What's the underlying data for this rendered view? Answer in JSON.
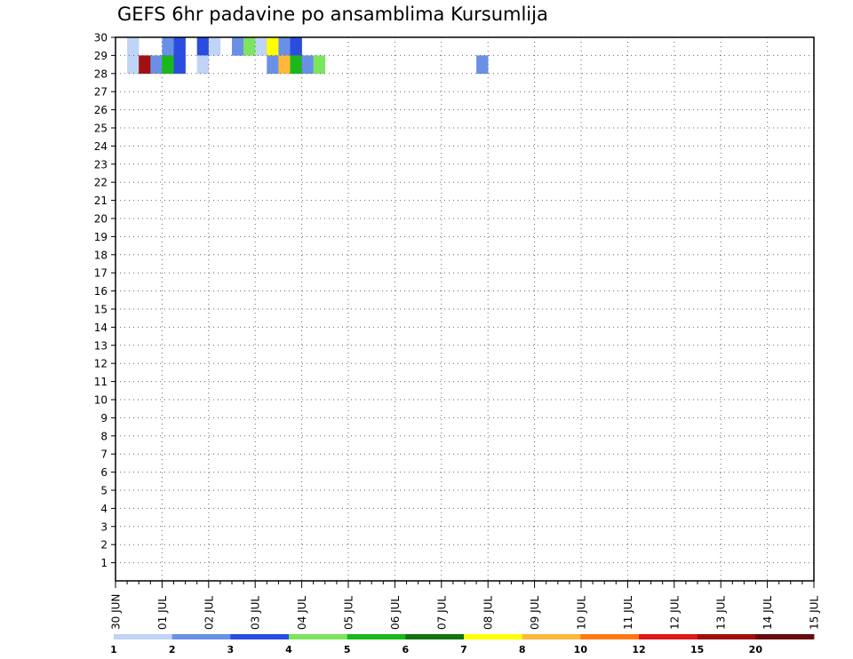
{
  "chart_data": {
    "type": "heatmap",
    "title": "GEFS 6hr padavine po ansamblima Kursumlija",
    "xlabel": "",
    "ylabel": "",
    "x_tick_labels": [
      "30 JUN",
      "01 JUL",
      "02 JUL",
      "03 JUL",
      "04 JUL",
      "05 JUL",
      "06 JUL",
      "07 JUL",
      "08 JUL",
      "09 JUL",
      "10 JUL",
      "11 JUL",
      "12 JUL",
      "13 JUL",
      "14 JUL",
      "15 JUL"
    ],
    "y_tick_labels": [
      "1",
      "2",
      "3",
      "4",
      "5",
      "6",
      "7",
      "8",
      "9",
      "10",
      "11",
      "12",
      "13",
      "14",
      "15",
      "16",
      "17",
      "18",
      "19",
      "20",
      "21",
      "22",
      "23",
      "24",
      "25",
      "26",
      "27",
      "28",
      "29",
      "30"
    ],
    "grid": true,
    "legend": {
      "placement": "bottom",
      "labels": [
        "1",
        "2",
        "3",
        "4",
        "5",
        "6",
        "7",
        "8",
        "10",
        "12",
        "15",
        "20"
      ],
      "colors": [
        "#c0d4f8",
        "#6a90e6",
        "#2a4de0",
        "#7de460",
        "#1ab81a",
        "#127212",
        "#ffff00",
        "#ffb83a",
        "#ff7a12",
        "#de1a1a",
        "#a01010",
        "#6a0a0a"
      ]
    },
    "x_resolution": "6hr",
    "cells": [
      {
        "t": "30 JUN 06",
        "m": 30,
        "v": 1.5
      },
      {
        "t": "01 JUL 00",
        "m": 30,
        "v": 2.5
      },
      {
        "t": "01 JUL 06",
        "m": 30,
        "v": 3.5
      },
      {
        "t": "01 JUL 18",
        "m": 30,
        "v": 3.5
      },
      {
        "t": "02 JUL 00",
        "m": 30,
        "v": 1.5
      },
      {
        "t": "02 JUL 12",
        "m": 30,
        "v": 2.5
      },
      {
        "t": "02 JUL 18",
        "m": 30,
        "v": 4.5
      },
      {
        "t": "03 JUL 00",
        "m": 30,
        "v": 1.5
      },
      {
        "t": "03 JUL 06",
        "m": 30,
        "v": 7.5
      },
      {
        "t": "03 JUL 12",
        "m": 30,
        "v": 2.5
      },
      {
        "t": "03 JUL 18",
        "m": 30,
        "v": 3.5
      },
      {
        "t": "30 JUN 06",
        "m": 29,
        "v": 1.5
      },
      {
        "t": "30 JUN 12",
        "m": 29,
        "v": 15.5
      },
      {
        "t": "30 JUN 18",
        "m": 29,
        "v": 2.5
      },
      {
        "t": "01 JUL 00",
        "m": 29,
        "v": 5.5
      },
      {
        "t": "01 JUL 06",
        "m": 29,
        "v": 3.5
      },
      {
        "t": "01 JUL 18",
        "m": 29,
        "v": 1.5
      },
      {
        "t": "03 JUL 06",
        "m": 29,
        "v": 2.5
      },
      {
        "t": "03 JUL 12",
        "m": 29,
        "v": 9
      },
      {
        "t": "03 JUL 18",
        "m": 29,
        "v": 5.5
      },
      {
        "t": "04 JUL 00",
        "m": 29,
        "v": 2.5
      },
      {
        "t": "04 JUL 06",
        "m": 29,
        "v": 4.5
      },
      {
        "t": "07 JUL 18",
        "m": 29,
        "v": 2.5
      }
    ]
  }
}
